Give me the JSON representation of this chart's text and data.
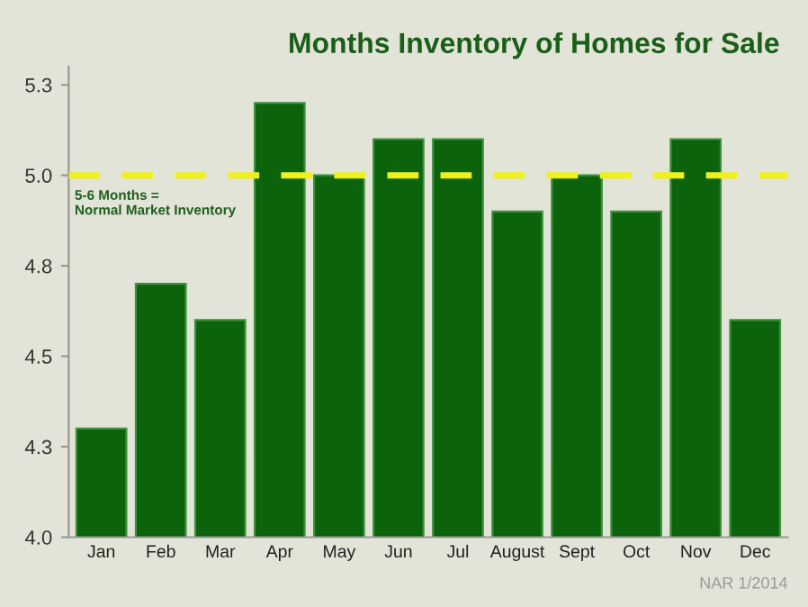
{
  "chart_data": {
    "type": "bar",
    "title": "Months Inventory of Homes for Sale",
    "categories": [
      "Jan",
      "Feb",
      "Mar",
      "Apr",
      "May",
      "Jun",
      "Jul",
      "August",
      "Sept",
      "Oct",
      "Nov",
      "Dec"
    ],
    "values": [
      4.3,
      4.7,
      4.6,
      5.2,
      5.0,
      5.1,
      5.1,
      4.9,
      5.0,
      4.9,
      5.1,
      4.6
    ],
    "color": "#0b640b",
    "ylim": [
      4.0,
      5.3
    ],
    "yticks": [
      {
        "value": 4.0,
        "label": "4.0"
      },
      {
        "value": 4.25,
        "label": "4.3"
      },
      {
        "value": 4.5,
        "label": "4.5"
      },
      {
        "value": 4.75,
        "label": "4.8"
      },
      {
        "value": 5.0,
        "label": "5.0"
      },
      {
        "value": 5.25,
        "label": "5.3"
      }
    ],
    "ref_lines": [
      {
        "axis": "y",
        "value": 5.0,
        "label": "5-6 Months =\nNormal Market Inventory",
        "color": "#f0f01e",
        "line_style": "dashed"
      }
    ],
    "annotations": [
      "NAR 1/2014"
    ],
    "grid": false,
    "legend": false
  }
}
